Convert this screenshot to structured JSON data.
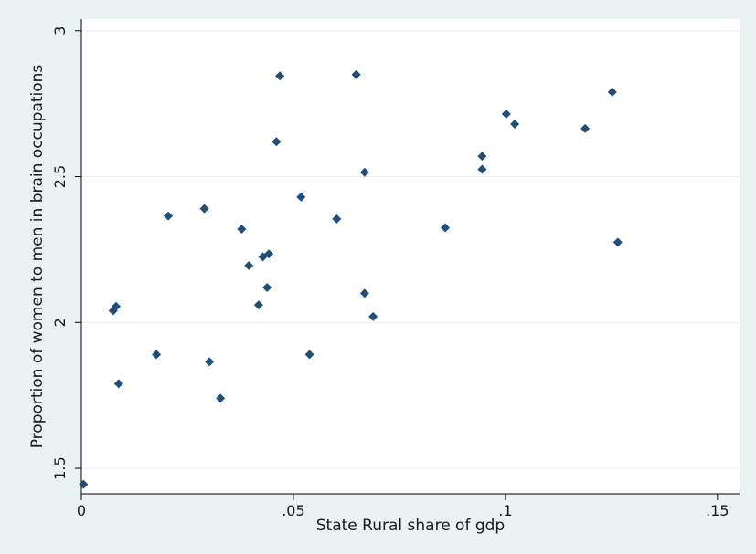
{
  "chart_data": {
    "type": "scatter",
    "title": "",
    "xlabel": "State Rural share of gdp",
    "ylabel": "Proportion of women to men in brain occupations",
    "xlim": [
      0,
      0.15
    ],
    "ylim": [
      1.45,
      3.0
    ],
    "x_ticks": [
      0,
      0.05,
      0.1,
      0.15
    ],
    "x_tick_labels": [
      "0",
      ".05",
      ".1",
      ".15"
    ],
    "y_ticks": [
      1.5,
      2,
      2.5,
      3
    ],
    "y_tick_labels": [
      "1.5",
      "2",
      "2.5",
      "3"
    ],
    "grid": "horizontal",
    "marker_color": "#1f4e79",
    "plot_bg": "#ffffff",
    "outer_bg": "#eaf2f3",
    "points": [
      {
        "x": 0.0005,
        "y": 1.445
      },
      {
        "x": 0.0075,
        "y": 2.04
      },
      {
        "x": 0.0082,
        "y": 2.055
      },
      {
        "x": 0.0088,
        "y": 1.79
      },
      {
        "x": 0.0177,
        "y": 1.89
      },
      {
        "x": 0.0205,
        "y": 2.365
      },
      {
        "x": 0.029,
        "y": 2.39
      },
      {
        "x": 0.0302,
        "y": 1.865
      },
      {
        "x": 0.0328,
        "y": 1.74
      },
      {
        "x": 0.0378,
        "y": 2.32
      },
      {
        "x": 0.0395,
        "y": 2.195
      },
      {
        "x": 0.0418,
        "y": 2.06
      },
      {
        "x": 0.0428,
        "y": 2.225
      },
      {
        "x": 0.0438,
        "y": 2.12
      },
      {
        "x": 0.0442,
        "y": 2.235
      },
      {
        "x": 0.046,
        "y": 2.62
      },
      {
        "x": 0.0468,
        "y": 2.845
      },
      {
        "x": 0.0518,
        "y": 2.43
      },
      {
        "x": 0.0538,
        "y": 1.89
      },
      {
        "x": 0.0602,
        "y": 2.355
      },
      {
        "x": 0.0648,
        "y": 2.85
      },
      {
        "x": 0.0668,
        "y": 2.515
      },
      {
        "x": 0.0668,
        "y": 2.1
      },
      {
        "x": 0.0688,
        "y": 2.02
      },
      {
        "x": 0.0858,
        "y": 2.325
      },
      {
        "x": 0.0945,
        "y": 2.525
      },
      {
        "x": 0.0945,
        "y": 2.57
      },
      {
        "x": 0.1002,
        "y": 2.715
      },
      {
        "x": 0.1022,
        "y": 2.68
      },
      {
        "x": 0.1188,
        "y": 2.665
      },
      {
        "x": 0.1252,
        "y": 2.79
      },
      {
        "x": 0.1265,
        "y": 2.275
      }
    ]
  }
}
